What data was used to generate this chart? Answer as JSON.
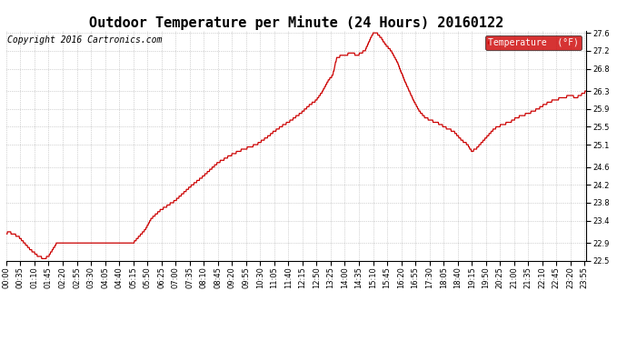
{
  "title": "Outdoor Temperature per Minute (24 Hours) 20160122",
  "copyright_text": "Copyright 2016 Cartronics.com",
  "legend_label": "Temperature  (°F)",
  "line_color": "#cc0000",
  "legend_bg": "#cc0000",
  "legend_text_color": "#ffffff",
  "background_color": "#ffffff",
  "grid_color": "#999999",
  "ylim": [
    22.5,
    27.65
  ],
  "yticks": [
    22.5,
    22.9,
    23.4,
    23.8,
    24.2,
    24.6,
    25.1,
    25.5,
    25.9,
    26.3,
    26.8,
    27.2,
    27.6
  ],
  "title_fontsize": 11,
  "tick_fontsize": 6,
  "copyright_fontsize": 7,
  "key_points": [
    [
      0,
      23.1
    ],
    [
      5,
      23.15
    ],
    [
      30,
      23.05
    ],
    [
      60,
      22.75
    ],
    [
      80,
      22.6
    ],
    [
      95,
      22.55
    ],
    [
      105,
      22.6
    ],
    [
      115,
      22.75
    ],
    [
      125,
      22.9
    ],
    [
      150,
      22.9
    ],
    [
      180,
      22.9
    ],
    [
      210,
      22.9
    ],
    [
      240,
      22.9
    ],
    [
      270,
      22.9
    ],
    [
      300,
      22.9
    ],
    [
      315,
      22.9
    ],
    [
      330,
      23.05
    ],
    [
      345,
      23.2
    ],
    [
      360,
      23.45
    ],
    [
      385,
      23.65
    ],
    [
      420,
      23.85
    ],
    [
      455,
      24.15
    ],
    [
      490,
      24.4
    ],
    [
      525,
      24.7
    ],
    [
      555,
      24.85
    ],
    [
      575,
      24.95
    ],
    [
      590,
      25.0
    ],
    [
      620,
      25.1
    ],
    [
      645,
      25.25
    ],
    [
      665,
      25.4
    ],
    [
      690,
      25.55
    ],
    [
      700,
      25.6
    ],
    [
      730,
      25.8
    ],
    [
      755,
      26.0
    ],
    [
      770,
      26.1
    ],
    [
      785,
      26.3
    ],
    [
      800,
      26.55
    ],
    [
      810,
      26.65
    ],
    [
      820,
      27.05
    ],
    [
      835,
      27.1
    ],
    [
      860,
      27.15
    ],
    [
      870,
      27.1
    ],
    [
      890,
      27.2
    ],
    [
      905,
      27.5
    ],
    [
      912,
      27.62
    ],
    [
      918,
      27.6
    ],
    [
      930,
      27.5
    ],
    [
      940,
      27.35
    ],
    [
      955,
      27.2
    ],
    [
      970,
      26.95
    ],
    [
      990,
      26.5
    ],
    [
      1010,
      26.1
    ],
    [
      1025,
      25.85
    ],
    [
      1040,
      25.7
    ],
    [
      1065,
      25.6
    ],
    [
      1080,
      25.55
    ],
    [
      1085,
      25.5
    ],
    [
      1110,
      25.4
    ],
    [
      1130,
      25.2
    ],
    [
      1145,
      25.1
    ],
    [
      1155,
      24.95
    ],
    [
      1165,
      25.0
    ],
    [
      1180,
      25.15
    ],
    [
      1195,
      25.3
    ],
    [
      1210,
      25.45
    ],
    [
      1230,
      25.55
    ],
    [
      1250,
      25.6
    ],
    [
      1265,
      25.7
    ],
    [
      1295,
      25.8
    ],
    [
      1320,
      25.9
    ],
    [
      1335,
      26.0
    ],
    [
      1360,
      26.1
    ],
    [
      1380,
      26.15
    ],
    [
      1400,
      26.2
    ],
    [
      1415,
      26.15
    ],
    [
      1422,
      26.2
    ],
    [
      1432,
      26.25
    ],
    [
      1439,
      26.3
    ]
  ]
}
